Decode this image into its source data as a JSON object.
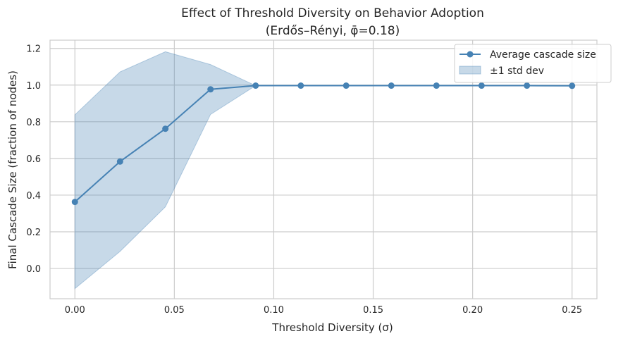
{
  "chart_data": {
    "type": "line",
    "title": "Effect of Threshold Diversity on Behavior Adoption",
    "subtitle": "(Erdős–Rényi, φ̄=0.18)",
    "xlabel": "Threshold Diversity (σ)",
    "ylabel": "Final Cascade Size (fraction of nodes)",
    "xlim": [
      -0.0125,
      0.2625
    ],
    "ylim": [
      -0.165,
      1.245
    ],
    "xticks": [
      0.0,
      0.05,
      0.1,
      0.15,
      0.2,
      0.25
    ],
    "xtick_labels": [
      "0.00",
      "0.05",
      "0.10",
      "0.15",
      "0.20",
      "0.25"
    ],
    "yticks": [
      0.0,
      0.2,
      0.4,
      0.6,
      0.8,
      1.0,
      1.2
    ],
    "ytick_labels": [
      "0.0",
      "0.2",
      "0.4",
      "0.6",
      "0.8",
      "1.0",
      "1.2"
    ],
    "grid": true,
    "legend_position": "top-right",
    "colors": {
      "line": "#4682b4",
      "band": "#4682b4",
      "grid": "#cccccc",
      "axes": "#cccccc"
    },
    "x": [
      0.0,
      0.0227,
      0.0455,
      0.0682,
      0.0909,
      0.1136,
      0.1364,
      0.1591,
      0.1818,
      0.2045,
      0.2273,
      0.25
    ],
    "series": [
      {
        "name": "Average cascade size",
        "values": [
          0.363,
          0.583,
          0.762,
          0.977,
          0.997,
          0.997,
          0.997,
          0.997,
          0.997,
          0.997,
          0.997,
          0.996
        ]
      }
    ],
    "band": {
      "name": "±1 std dev",
      "lower": [
        -0.11,
        0.093,
        0.336,
        0.84,
        0.997,
        0.997,
        0.997,
        0.997,
        0.997,
        0.997,
        0.997,
        0.996
      ],
      "upper": [
        0.838,
        1.072,
        1.182,
        1.112,
        0.997,
        0.997,
        0.997,
        0.997,
        0.997,
        0.997,
        0.997,
        0.996
      ]
    }
  }
}
